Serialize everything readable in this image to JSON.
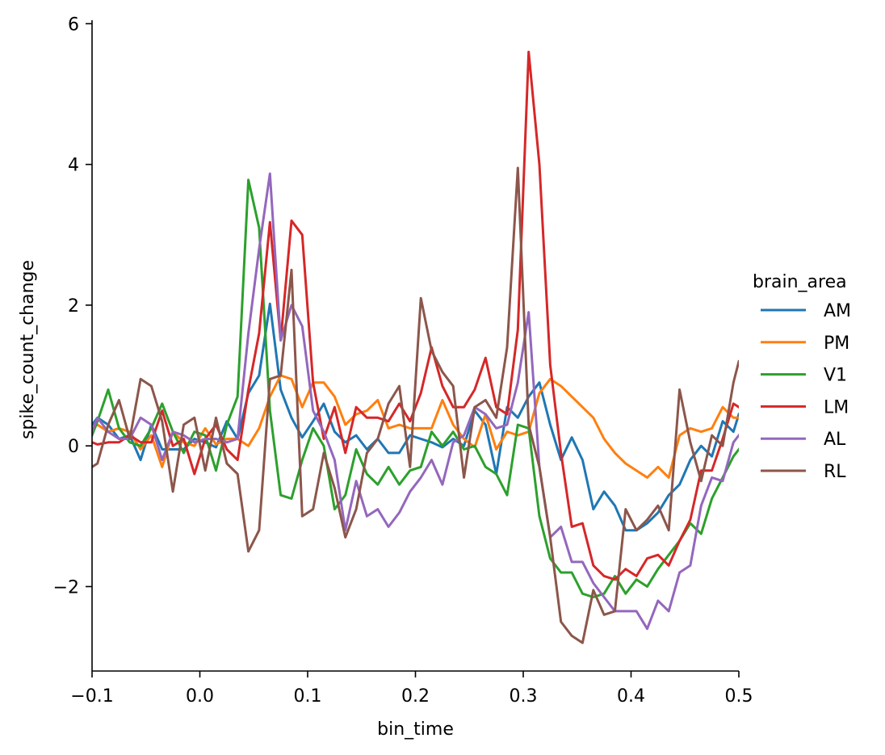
{
  "chart_data": {
    "type": "line",
    "title": "",
    "xlabel": "bin_time",
    "ylabel": "spike_count_change",
    "xlim": [
      -0.1,
      0.5
    ],
    "ylim": [
      -3.2,
      6.05
    ],
    "xticks": [
      -0.1,
      0.0,
      0.1,
      0.2,
      0.3,
      0.4,
      0.5
    ],
    "xtick_labels": [
      "−0.1",
      "0.0",
      "0.1",
      "0.2",
      "0.3",
      "0.4",
      "0.5"
    ],
    "yticks": [
      -2,
      0,
      2,
      4,
      6
    ],
    "ytick_labels": [
      "−2",
      "0",
      "2",
      "4",
      "6"
    ],
    "grid": false,
    "legend": {
      "title": "brain_area",
      "position": "right"
    },
    "x": [
      -0.1,
      -0.095,
      -0.085,
      -0.075,
      -0.065,
      -0.055,
      -0.045,
      -0.035,
      -0.025,
      -0.015,
      -0.005,
      0.005,
      0.015,
      0.025,
      0.035,
      0.045,
      0.055,
      0.065,
      0.075,
      0.085,
      0.095,
      0.105,
      0.115,
      0.125,
      0.135,
      0.145,
      0.155,
      0.165,
      0.175,
      0.185,
      0.195,
      0.205,
      0.215,
      0.225,
      0.235,
      0.245,
      0.255,
      0.265,
      0.275,
      0.285,
      0.295,
      0.305,
      0.315,
      0.325,
      0.335,
      0.345,
      0.355,
      0.365,
      0.375,
      0.385,
      0.395,
      0.405,
      0.415,
      0.425,
      0.435,
      0.445,
      0.455,
      0.465,
      0.475,
      0.485,
      0.495,
      0.5
    ],
    "series": [
      {
        "name": "AM",
        "color": "#1f77b4",
        "values": [
          0.3,
          0.4,
          0.3,
          0.1,
          0.15,
          -0.2,
          0.3,
          -0.05,
          -0.05,
          -0.05,
          0.1,
          0.05,
          -0.02,
          0.35,
          0.1,
          0.75,
          1.0,
          2.02,
          0.8,
          0.4,
          0.12,
          0.35,
          0.6,
          0.2,
          0.05,
          0.15,
          -0.05,
          0.1,
          -0.1,
          -0.1,
          0.15,
          0.1,
          0.05,
          -0.02,
          0.1,
          0.0,
          0.5,
          0.3,
          -0.4,
          0.55,
          0.4,
          0.7,
          0.9,
          0.3,
          -0.2,
          0.12,
          -0.2,
          -0.9,
          -0.65,
          -0.85,
          -1.2,
          -1.2,
          -1.1,
          -0.95,
          -0.7,
          -0.55,
          -0.2,
          0.0,
          -0.15,
          0.35,
          0.2,
          0.45
        ]
      },
      {
        "name": "PM",
        "color": "#ff7f0e",
        "values": [
          0.25,
          0.3,
          0.2,
          0.25,
          0.2,
          -0.05,
          0.15,
          -0.3,
          0.2,
          0.05,
          0.0,
          0.25,
          0.02,
          0.1,
          0.1,
          0.0,
          0.25,
          0.7,
          1.0,
          0.95,
          0.55,
          0.9,
          0.9,
          0.7,
          0.3,
          0.45,
          0.5,
          0.65,
          0.25,
          0.3,
          0.25,
          0.25,
          0.25,
          0.65,
          0.3,
          0.1,
          -0.02,
          0.45,
          -0.05,
          0.2,
          0.15,
          0.2,
          0.75,
          0.95,
          0.85,
          0.7,
          0.55,
          0.4,
          0.1,
          -0.1,
          -0.25,
          -0.35,
          -0.45,
          -0.3,
          -0.45,
          0.15,
          0.25,
          0.2,
          0.25,
          0.55,
          0.4,
          0.4
        ]
      },
      {
        "name": "V1",
        "color": "#2ca02c",
        "values": [
          0.15,
          0.35,
          0.8,
          0.25,
          0.05,
          0.0,
          0.25,
          0.6,
          0.2,
          -0.1,
          0.2,
          0.15,
          -0.35,
          0.3,
          0.7,
          3.78,
          3.1,
          0.5,
          -0.7,
          -0.75,
          -0.2,
          0.25,
          0.0,
          -0.9,
          -0.7,
          -0.05,
          -0.4,
          -0.55,
          -0.3,
          -0.55,
          -0.35,
          -0.3,
          0.2,
          0.0,
          0.2,
          -0.05,
          0.0,
          -0.3,
          -0.4,
          -0.7,
          0.3,
          0.25,
          -1.0,
          -1.6,
          -1.8,
          -1.8,
          -2.1,
          -2.15,
          -2.1,
          -1.85,
          -2.1,
          -1.9,
          -2.0,
          -1.75,
          -1.55,
          -1.35,
          -1.1,
          -1.25,
          -0.75,
          -0.45,
          -0.15,
          -0.05
        ]
      },
      {
        "name": "LM",
        "color": "#d62728",
        "values": [
          0.05,
          0.02,
          0.05,
          0.05,
          0.15,
          0.05,
          0.05,
          0.5,
          0.0,
          0.1,
          -0.4,
          0.1,
          0.3,
          -0.05,
          -0.2,
          0.8,
          1.6,
          3.18,
          1.5,
          3.2,
          3.0,
          0.9,
          0.1,
          0.55,
          -0.1,
          0.55,
          0.4,
          0.4,
          0.35,
          0.6,
          0.35,
          0.75,
          1.4,
          0.85,
          0.55,
          0.55,
          0.8,
          1.25,
          0.55,
          0.45,
          1.65,
          5.6,
          4.0,
          1.15,
          -0.1,
          -1.15,
          -1.1,
          -1.7,
          -1.85,
          -1.9,
          -1.75,
          -1.85,
          -1.6,
          -1.55,
          -1.7,
          -1.35,
          -1.05,
          -0.35,
          -0.35,
          0.1,
          0.6,
          0.55
        ]
      },
      {
        "name": "AL",
        "color": "#9467bd",
        "values": [
          0.2,
          0.4,
          0.2,
          0.1,
          0.1,
          0.4,
          0.3,
          -0.2,
          0.2,
          0.15,
          0.05,
          0.1,
          0.1,
          0.05,
          0.1,
          1.6,
          2.8,
          3.87,
          1.5,
          2.0,
          1.7,
          0.5,
          0.2,
          -0.2,
          -1.2,
          -0.5,
          -1.0,
          -0.9,
          -1.15,
          -0.95,
          -0.65,
          -0.45,
          -0.2,
          -0.55,
          0.05,
          0.15,
          0.55,
          0.45,
          0.25,
          0.3,
          0.9,
          1.9,
          -0.3,
          -1.3,
          -1.15,
          -1.65,
          -1.65,
          -1.95,
          -2.15,
          -2.35,
          -2.35,
          -2.35,
          -2.6,
          -2.2,
          -2.35,
          -1.8,
          -1.7,
          -0.85,
          -0.45,
          -0.5,
          0.05,
          0.15
        ]
      },
      {
        "name": "RL",
        "color": "#8c564b",
        "values": [
          -0.3,
          -0.25,
          0.3,
          0.65,
          0.1,
          0.95,
          0.85,
          0.35,
          -0.65,
          0.3,
          0.4,
          -0.35,
          0.4,
          -0.25,
          -0.4,
          -1.5,
          -1.2,
          0.95,
          1.0,
          2.5,
          -1.0,
          -0.9,
          -0.1,
          -0.6,
          -1.3,
          -0.9,
          -0.1,
          0.1,
          0.6,
          0.85,
          -0.3,
          2.1,
          1.35,
          1.05,
          0.85,
          -0.45,
          0.55,
          0.65,
          0.4,
          1.4,
          3.95,
          0.3,
          -0.3,
          -1.3,
          -2.5,
          -2.7,
          -2.8,
          -2.05,
          -2.4,
          -2.35,
          -0.9,
          -1.2,
          -1.05,
          -0.85,
          -1.2,
          0.8,
          0.05,
          -0.5,
          0.15,
          0.0,
          0.9,
          1.2
        ]
      }
    ]
  }
}
